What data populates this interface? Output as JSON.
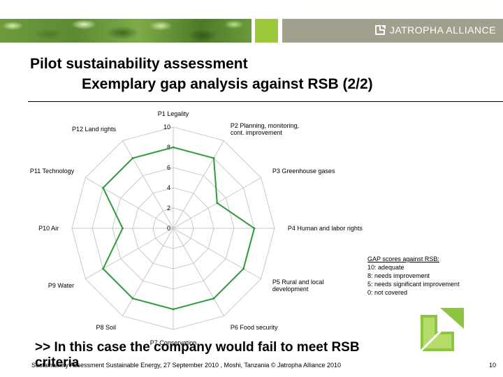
{
  "header": {
    "brand_text": "JATROPHA ALLIANCE",
    "colors": {
      "green": "#9cc83c",
      "grey": "#a39f8f",
      "line": "#2e9a3e"
    }
  },
  "title": {
    "line1": "Pilot sustainability assessment",
    "line2": "Exemplary gap analysis against RSB (2/2)"
  },
  "chart_data": {
    "type": "radar",
    "axes": [
      [
        "P1 Legality"
      ],
      [
        "P2 Planning, monitoring,",
        "cont. improvement"
      ],
      [
        "P3 Greenhouse gases"
      ],
      [
        "P4 Human and labor rights"
      ],
      [
        "P5 Rural and local",
        "development"
      ],
      [
        "P6 Food security"
      ],
      [
        "P7 Conservation"
      ],
      [
        "P8 Soil"
      ],
      [
        "P9 Water"
      ],
      [
        "P10 Air"
      ],
      [
        "P11 Technology"
      ],
      [
        "P12 Land rights"
      ]
    ],
    "values": [
      8,
      8,
      5,
      8,
      8,
      8,
      8,
      8,
      8,
      5,
      8,
      8
    ],
    "rlim": [
      0,
      10
    ],
    "ticks": [
      0,
      2,
      4,
      6,
      8,
      10
    ],
    "series_color": "#2e9a3e"
  },
  "legend": {
    "title": "GAP scores against RSB:",
    "lines": [
      "10: adequate",
      "8: needs improvement",
      "5: needs significant improvement",
      "0: not covered"
    ]
  },
  "conclusion": ">> In this case the company would fail to meet RSB criteria",
  "footer": {
    "text": "Sustainability Assessment Sustainable Energy, 27 September 2010 , Moshi, Tanzania © Jatropha Alliance 2010",
    "page": "10"
  }
}
